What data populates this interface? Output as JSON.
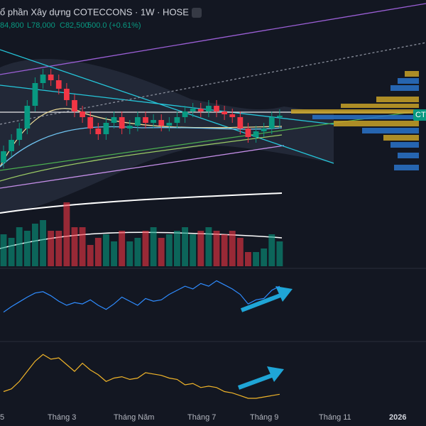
{
  "header": {
    "title": "ổ phần Xây dựng COTECCONS · 1W · HOSE",
    "high": "84,800",
    "low": "L78,000",
    "close": "C82,500",
    "change": "500.0 (+0.61%)",
    "tag": "CTD"
  },
  "chart_data": {
    "type": "candlestick",
    "x_labels": [
      "5",
      "Tháng 3",
      "Tháng Năm",
      "Tháng 7",
      "Tháng 9",
      "Tháng 11",
      "2026"
    ],
    "ylim": [
      29500,
      123250
    ],
    "open": [
      66000,
      70000,
      74000,
      78000,
      86000,
      94000,
      97000,
      95000,
      92000,
      88000,
      84000,
      82000,
      78000,
      76000,
      80000,
      82000,
      78000,
      79000,
      82000,
      80000,
      81000,
      79000,
      80000,
      82000,
      84000,
      85000,
      84000,
      86000,
      84000,
      83000,
      82000,
      78000,
      75000,
      77000,
      78000,
      82000
    ],
    "high": [
      72000,
      76000,
      80000,
      88000,
      96000,
      99000,
      99000,
      97000,
      94000,
      90000,
      86000,
      84000,
      80000,
      82000,
      84000,
      84000,
      81000,
      84000,
      84000,
      83000,
      83000,
      82000,
      84000,
      86000,
      87000,
      87000,
      88000,
      88000,
      86000,
      85000,
      84000,
      80000,
      79000,
      80000,
      84000,
      84800
    ],
    "low": [
      64000,
      68000,
      72000,
      76000,
      84000,
      92000,
      93000,
      90000,
      86000,
      82000,
      80000,
      76000,
      74000,
      74000,
      78000,
      76000,
      76000,
      77000,
      78000,
      78000,
      77000,
      77000,
      78000,
      80000,
      82000,
      82000,
      82000,
      82000,
      81000,
      80000,
      76000,
      73000,
      73000,
      75000,
      76000,
      78000
    ],
    "close": [
      70000,
      74000,
      78000,
      86000,
      94000,
      97000,
      95000,
      92000,
      88000,
      84000,
      82000,
      78000,
      76000,
      80000,
      82000,
      78000,
      79000,
      82000,
      80000,
      81000,
      79000,
      80000,
      82000,
      84000,
      85000,
      84000,
      86000,
      84000,
      83000,
      82000,
      78000,
      75000,
      77000,
      78000,
      82000,
      82500
    ],
    "volume": [
      900000,
      800000,
      1100000,
      1000000,
      1200000,
      1300000,
      1000000,
      1000000,
      1800000,
      1100000,
      1100000,
      600000,
      800000,
      900000,
      700000,
      1000000,
      700000,
      800000,
      1000000,
      1100000,
      800000,
      900000,
      1000000,
      1100000,
      900000,
      1000000,
      1100000,
      1000000,
      900000,
      1000000,
      800000,
      400000,
      400000,
      500000,
      900000,
      700000
    ],
    "vlim": [
      0,
      3000000
    ],
    "up_color": "#089981",
    "down_color": "#f23645",
    "indicators": [
      {
        "color": "#2f8cff",
        "ylim": [
          0,
          100
        ],
        "values": [
          40,
          48,
          55,
          62,
          68,
          70,
          64,
          56,
          50,
          54,
          52,
          58,
          50,
          44,
          52,
          62,
          56,
          50,
          60,
          56,
          58,
          66,
          72,
          78,
          74,
          82,
          78,
          86,
          80,
          74,
          66,
          52,
          58,
          60,
          72,
          78
        ]
      },
      {
        "color": "#f0b429",
        "ylim": [
          0,
          100
        ],
        "values": [
          30,
          34,
          45,
          60,
          75,
          85,
          78,
          80,
          70,
          60,
          72,
          62,
          55,
          45,
          50,
          52,
          48,
          50,
          58,
          56,
          54,
          50,
          48,
          40,
          42,
          36,
          38,
          36,
          30,
          28,
          24,
          20,
          20,
          22,
          24,
          26
        ]
      }
    ]
  }
}
